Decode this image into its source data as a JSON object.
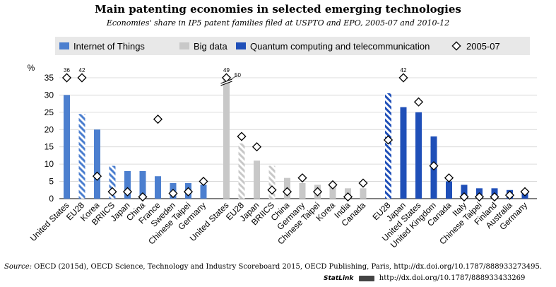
{
  "title": "Main patenting economies in selected emerging technologies",
  "subtitle": "Economies' share in IP5 patent families filed at USPTO and EPO, 2005-07 and 2010-12",
  "source_label": "Source:",
  "source_text": "OECD (2015d), OECD Science, Technology and Industry Scoreboard 2015, OECD Publishing, Paris, http://dx.doi.org/10.1787/888933273495.",
  "statlink_label": "StatLink",
  "statlink_url": "http://dx.doi.org/10.1787/888933433269",
  "chart_data": {
    "type": "bar",
    "ylabel": "%",
    "ylim": [
      0,
      35
    ],
    "yticks": [
      0,
      5,
      10,
      15,
      20,
      25,
      30,
      35
    ],
    "grid": true,
    "legend": [
      {
        "label": "Internet of Things",
        "kind": "bar",
        "color": "#4c7fcf"
      },
      {
        "label": "Big data",
        "kind": "bar",
        "color": "#c8c8c8"
      },
      {
        "label": "Quantum computing and telecommunication",
        "kind": "bar",
        "color": "#1f4fb8"
      },
      {
        "label": "2005-07",
        "kind": "marker"
      }
    ],
    "groups": [
      {
        "name": "Internet of Things",
        "color": "#4c7fcf",
        "categories": [
          "United States",
          "EU28",
          "Korea",
          "BRIICS",
          "Japan",
          "China",
          "France",
          "Sweden",
          "Chinese Taipei",
          "Germany"
        ],
        "values_2010_12": [
          30,
          24.5,
          20,
          9.5,
          8,
          8,
          6.5,
          4.5,
          4.5,
          4
        ],
        "values_2005_07": [
          36,
          42,
          6.5,
          2,
          2,
          0.5,
          23,
          1.5,
          2,
          5
        ],
        "hatched": [
          "EU28",
          "BRIICS"
        ],
        "labels": [
          {
            "category": "United States",
            "text": "36"
          },
          {
            "category": "EU28",
            "text": "42"
          }
        ]
      },
      {
        "name": "Big data",
        "color": "#c8c8c8",
        "categories": [
          "United States",
          "EU28",
          "Japan",
          "BRIICS",
          "China",
          "Germany",
          "Chinese Taipei",
          "Korea",
          "India",
          "Canada"
        ],
        "values_2010_12": [
          50,
          16,
          11,
          9.5,
          6,
          4.5,
          4,
          4,
          3,
          3
        ],
        "values_2005_07": [
          49,
          18,
          15,
          2.5,
          2,
          6,
          2,
          4,
          0.5,
          4.5
        ],
        "hatched": [
          "EU28",
          "BRIICS"
        ],
        "labels": [
          {
            "category": "United States",
            "text": "49"
          },
          {
            "category": "United States",
            "text": "50"
          }
        ]
      },
      {
        "name": "Quantum computing and telecommunication",
        "color": "#1f4fb8",
        "categories": [
          "EU28",
          "Japan",
          "United States",
          "United Kingdom",
          "Canada",
          "Italy",
          "Chinese Taipei",
          "Finland",
          "Australia",
          "Germany"
        ],
        "values_2010_12": [
          30.5,
          26.5,
          25,
          18,
          5,
          4,
          3,
          3,
          2.5,
          2.5
        ],
        "values_2005_07": [
          17,
          42,
          28,
          9.5,
          6,
          0.5,
          0.5,
          0.5,
          1,
          2
        ],
        "hatched": [
          "EU28"
        ],
        "labels": [
          {
            "category": "Japan",
            "text": "42"
          }
        ]
      }
    ]
  }
}
